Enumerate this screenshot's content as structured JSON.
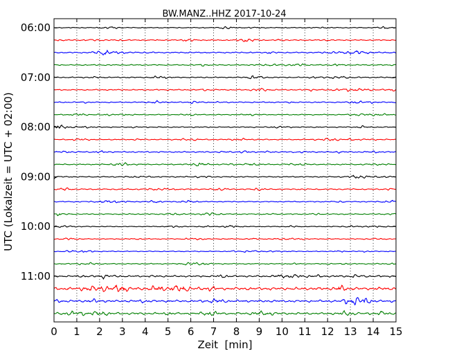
{
  "chart_data": {
    "type": "line",
    "title": "BW.MANZ..HHZ 2017-10-24",
    "xlabel": "Zeit  [min]",
    "ylabel": "UTC (Lokalzeit = UTC + 02:00)",
    "xlim": [
      0,
      15
    ],
    "x_ticks": [
      "0",
      "1",
      "2",
      "3",
      "4",
      "5",
      "6",
      "7",
      "8",
      "9",
      "10",
      "11",
      "12",
      "13",
      "14",
      "15"
    ],
    "y_tick_labels": [
      "06:00",
      "07:00",
      "08:00",
      "09:00",
      "10:00",
      "11:00"
    ],
    "grid": {
      "x": true,
      "y": false
    },
    "trace_interval_min": 15,
    "trace_colors": [
      "#000000",
      "#ff0000",
      "#0000ff",
      "#007f00"
    ],
    "series": [
      {
        "start": "06:00",
        "amp": 0.25,
        "color": "#000000"
      },
      {
        "start": "06:15",
        "amp": 0.3,
        "color": "#ff0000"
      },
      {
        "start": "06:30",
        "amp": 0.35,
        "color": "#0000ff"
      },
      {
        "start": "06:45",
        "amp": 0.3,
        "color": "#007f00"
      },
      {
        "start": "07:00",
        "amp": 0.3,
        "color": "#000000"
      },
      {
        "start": "07:15",
        "amp": 0.3,
        "color": "#ff0000"
      },
      {
        "start": "07:30",
        "amp": 0.3,
        "color": "#0000ff"
      },
      {
        "start": "07:45",
        "amp": 0.25,
        "color": "#007f00"
      },
      {
        "start": "08:00",
        "amp": 0.28,
        "color": "#000000"
      },
      {
        "start": "08:15",
        "amp": 0.28,
        "color": "#ff0000"
      },
      {
        "start": "08:30",
        "amp": 0.35,
        "color": "#0000ff"
      },
      {
        "start": "08:45",
        "amp": 0.3,
        "color": "#007f00"
      },
      {
        "start": "09:00",
        "amp": 0.3,
        "color": "#000000"
      },
      {
        "start": "09:15",
        "amp": 0.32,
        "color": "#ff0000"
      },
      {
        "start": "09:30",
        "amp": 0.28,
        "color": "#0000ff"
      },
      {
        "start": "09:45",
        "amp": 0.28,
        "color": "#007f00"
      },
      {
        "start": "10:00",
        "amp": 0.25,
        "color": "#000000"
      },
      {
        "start": "10:15",
        "amp": 0.25,
        "color": "#ff0000"
      },
      {
        "start": "10:30",
        "amp": 0.25,
        "color": "#0000ff"
      },
      {
        "start": "10:45",
        "amp": 0.28,
        "color": "#007f00"
      },
      {
        "start": "11:00",
        "amp": 0.45,
        "color": "#000000"
      },
      {
        "start": "11:15",
        "amp": 0.75,
        "color": "#ff0000"
      },
      {
        "start": "11:30",
        "amp": 0.6,
        "color": "#0000ff"
      },
      {
        "start": "11:45",
        "amp": 0.55,
        "color": "#007f00"
      }
    ]
  }
}
